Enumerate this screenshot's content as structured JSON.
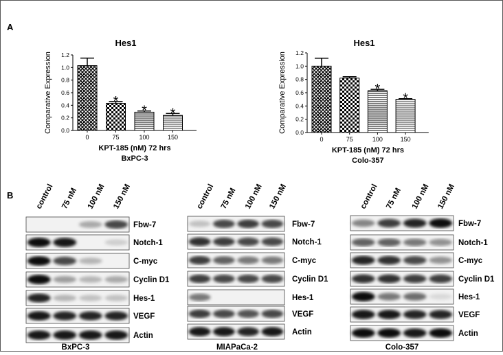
{
  "panel_labels": [
    "A",
    "B"
  ],
  "chart_data": [
    {
      "type": "bar",
      "title": "Hes1",
      "subtitle": "BxPC-3",
      "x_label": "KPT-185 (nM) 72 hrs",
      "y_label": "Comparative Expression",
      "categories": [
        "0",
        "75",
        "100",
        "150"
      ],
      "values": [
        1.03,
        0.43,
        0.29,
        0.24
      ],
      "errors": [
        0.12,
        0.03,
        0.02,
        0.03
      ],
      "annotations": [
        null,
        "*",
        "*",
        "*"
      ],
      "color": "#000000",
      "ylim": [
        0,
        1.2
      ],
      "yticks": [
        {
          "value": 0,
          "label": "0.0"
        },
        {
          "value": 0.2,
          "label": "0.2"
        },
        {
          "value": 0.4,
          "label": "0.4"
        },
        {
          "value": 0.6,
          "label": "0.6"
        },
        {
          "value": 0.8,
          "label": "0.8"
        },
        {
          "value": 1,
          "label": "1.0"
        },
        {
          "value": 1.2,
          "label": "1.2"
        }
      ]
    },
    {
      "type": "bar",
      "title": "Hes1",
      "subtitle": "Colo-357",
      "x_label": "KPT-185 (nM) 72 hrs",
      "y_label": "Comparative Expression",
      "categories": [
        "0",
        "75",
        "100",
        "150"
      ],
      "values": [
        1.0,
        0.82,
        0.63,
        0.5
      ],
      "errors": [
        0.12,
        0.02,
        0.02,
        0.01
      ],
      "annotations": [
        null,
        null,
        "*",
        "*"
      ],
      "color": "#000000",
      "ylim": [
        0,
        1.2
      ],
      "yticks": [
        {
          "value": 0,
          "label": "0.0"
        },
        {
          "value": 0.2,
          "label": "0.2"
        },
        {
          "value": 0.4,
          "label": "0.4"
        },
        {
          "value": 0.6,
          "label": "0.6"
        },
        {
          "value": 0.8,
          "label": "0.8"
        },
        {
          "value": 1,
          "label": "1.0"
        },
        {
          "value": 1.2,
          "label": "1.2"
        }
      ]
    }
  ],
  "blots": [
    {
      "cell_line": "BxPC-3",
      "lanes": [
        "control",
        "75 nM",
        "100 nM",
        "150 nM"
      ],
      "proteins": [
        "Fbw-7",
        "Notch-1",
        "C-myc",
        "Cyclin D1",
        "Hes-1",
        "VEGF",
        "Actin"
      ]
    },
    {
      "cell_line": "MIAPaCa-2",
      "lanes": [
        "control",
        "75 nM",
        "100 nM",
        "150 nM"
      ],
      "proteins": [
        "Fbw-7",
        "Notch-1",
        "C-myc",
        "Cyclin D1",
        "Hes-1",
        "VEGF",
        "Actin"
      ]
    },
    {
      "cell_line": "Colo-357",
      "lanes": [
        "control",
        "75 nM",
        "100 nM",
        "150 nM"
      ],
      "proteins": [
        "Fbw-7",
        "Notch-1",
        "C-myc",
        "Cyclin D1",
        "Hes-1",
        "VEGF",
        "Actin"
      ]
    }
  ]
}
